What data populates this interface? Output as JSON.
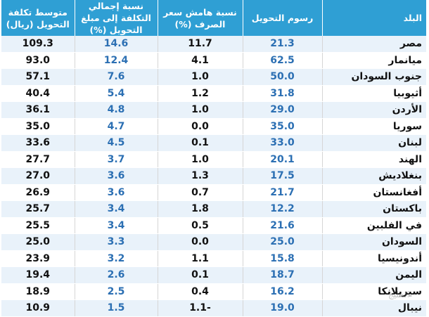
{
  "table": {
    "headers": {
      "country": "البلد",
      "fees": "رسوم التحويل",
      "margin": "نسبة هامش سعر الصرف (%)",
      "pct": "نسبة إجمالي التكلفة إلى مبلغ التحويل (%)",
      "avg": "متوسط تكلفة التحويل (ريال)"
    },
    "rows": [
      {
        "country": "مصر",
        "fees": "21.3",
        "margin": "11.7",
        "pct": "14.6",
        "avg": "109.3"
      },
      {
        "country": "ميانمار",
        "fees": "62.5",
        "margin": "4.1",
        "pct": "12.4",
        "avg": "93.0"
      },
      {
        "country": "جنوب السودان",
        "fees": "50.0",
        "margin": "1.0",
        "pct": "7.6",
        "avg": "57.1"
      },
      {
        "country": "أثيوبيا",
        "fees": "31.8",
        "margin": "1.2",
        "pct": "5.4",
        "avg": "40.4"
      },
      {
        "country": "الأردن",
        "fees": "29.0",
        "margin": "1.0",
        "pct": "4.8",
        "avg": "36.1"
      },
      {
        "country": "سوريا",
        "fees": "35.0",
        "margin": "0.0",
        "pct": "4.7",
        "avg": "35.0"
      },
      {
        "country": "لبنان",
        "fees": "33.0",
        "margin": "0.1",
        "pct": "4.5",
        "avg": "33.6"
      },
      {
        "country": "الهند",
        "fees": "20.1",
        "margin": "1.0",
        "pct": "3.7",
        "avg": "27.7"
      },
      {
        "country": "بنغلاديش",
        "fees": "17.5",
        "margin": "1.3",
        "pct": "3.6",
        "avg": "27.0"
      },
      {
        "country": "أفغانستان",
        "fees": "21.7",
        "margin": "0.7",
        "pct": "3.6",
        "avg": "26.9"
      },
      {
        "country": "باكستان",
        "fees": "12.2",
        "margin": "1.8",
        "pct": "3.4",
        "avg": "25.7"
      },
      {
        "country": "في الفلبين",
        "fees": "21.6",
        "margin": "0.5",
        "pct": "3.4",
        "avg": "25.5"
      },
      {
        "country": "السودان",
        "fees": "25.0",
        "margin": "0.0",
        "pct": "3.3",
        "avg": "25.0"
      },
      {
        "country": "أندونيسيا",
        "fees": "15.8",
        "margin": "1.1",
        "pct": "3.2",
        "avg": "23.9"
      },
      {
        "country": "اليمن",
        "fees": "18.7",
        "margin": "0.1",
        "pct": "2.6",
        "avg": "19.4"
      },
      {
        "country": "سيريلانكا",
        "fees": "16.2",
        "margin": "0.4",
        "pct": "2.5",
        "avg": "18.9"
      },
      {
        "country": "نيبال",
        "fees": "19.0",
        "margin": "-1.1",
        "pct": "1.5",
        "avg": "10.9"
      }
    ]
  },
  "watermark": "الخليج",
  "colors": {
    "header_bg": "#2f9fd4",
    "header_text": "#ffffff",
    "row_stripe": "#e9f2fa",
    "blue_value": "#2b6fb3",
    "dark_value": "#111111"
  }
}
